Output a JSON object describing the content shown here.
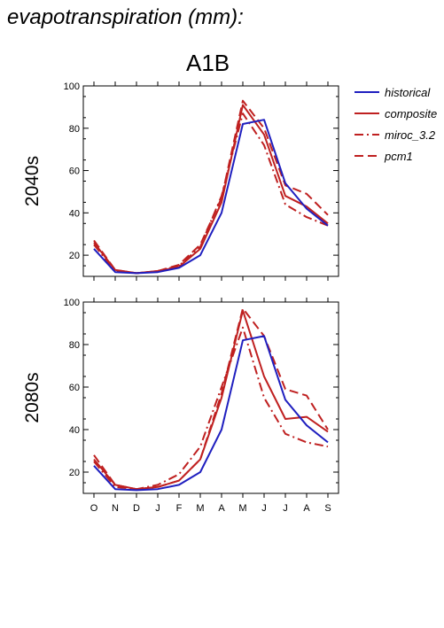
{
  "figure": {
    "title": "evapotranspiration (mm):",
    "panel_title": "A1B"
  },
  "styles": {
    "historical": {
      "color": "#1f1fbf",
      "dash": "solid"
    },
    "composite": {
      "color": "#bf2020",
      "dash": "solid"
    },
    "miroc_3.2": {
      "color": "#bf2020",
      "dash": "dashdot"
    },
    "pcm1": {
      "color": "#bf2020",
      "dash": "dashed"
    }
  },
  "chart_data": [
    {
      "type": "line",
      "ylabel": "2040s",
      "categories": [
        "O",
        "N",
        "D",
        "J",
        "F",
        "M",
        "A",
        "M",
        "J",
        "J",
        "A",
        "S"
      ],
      "ylim": [
        10,
        100
      ],
      "yticks": [
        20,
        40,
        60,
        80,
        100
      ],
      "grid": false,
      "legend": "top-right",
      "series": [
        {
          "name": "historical",
          "values": [
            23,
            12,
            11.5,
            12,
            14,
            20,
            40,
            82,
            84,
            54,
            42,
            34
          ]
        },
        {
          "name": "composite",
          "values": [
            26,
            13,
            11.5,
            12.5,
            14.5,
            23,
            45,
            91,
            77,
            48,
            43,
            35
          ]
        },
        {
          "name": "miroc_3.2",
          "values": [
            25,
            12.5,
            11.5,
            12.5,
            15,
            24,
            48,
            87,
            72,
            44,
            38,
            34
          ]
        },
        {
          "name": "pcm1",
          "values": [
            27,
            13,
            11.5,
            12.5,
            15.5,
            25,
            47,
            93,
            80,
            53,
            49,
            39
          ]
        }
      ]
    },
    {
      "type": "line",
      "ylabel": "2080s",
      "categories": [
        "O",
        "N",
        "D",
        "J",
        "F",
        "M",
        "A",
        "M",
        "J",
        "J",
        "A",
        "S"
      ],
      "ylim": [
        10,
        100
      ],
      "yticks": [
        20,
        40,
        60,
        80,
        100
      ],
      "grid": false,
      "series": [
        {
          "name": "historical",
          "values": [
            23,
            12,
            11.5,
            12,
            14,
            20,
            40,
            82,
            84,
            54,
            42,
            34
          ]
        },
        {
          "name": "composite",
          "values": [
            26,
            14,
            12,
            13,
            16,
            26,
            55,
            96,
            65,
            45,
            46,
            39
          ]
        },
        {
          "name": "miroc_3.2",
          "values": [
            25,
            13,
            12,
            14,
            19,
            32,
            60,
            88,
            55,
            38,
            34,
            32
          ]
        },
        {
          "name": "pcm1",
          "values": [
            28,
            14,
            12,
            13,
            16,
            26,
            57,
            97,
            84,
            59,
            56,
            40
          ]
        }
      ]
    }
  ]
}
